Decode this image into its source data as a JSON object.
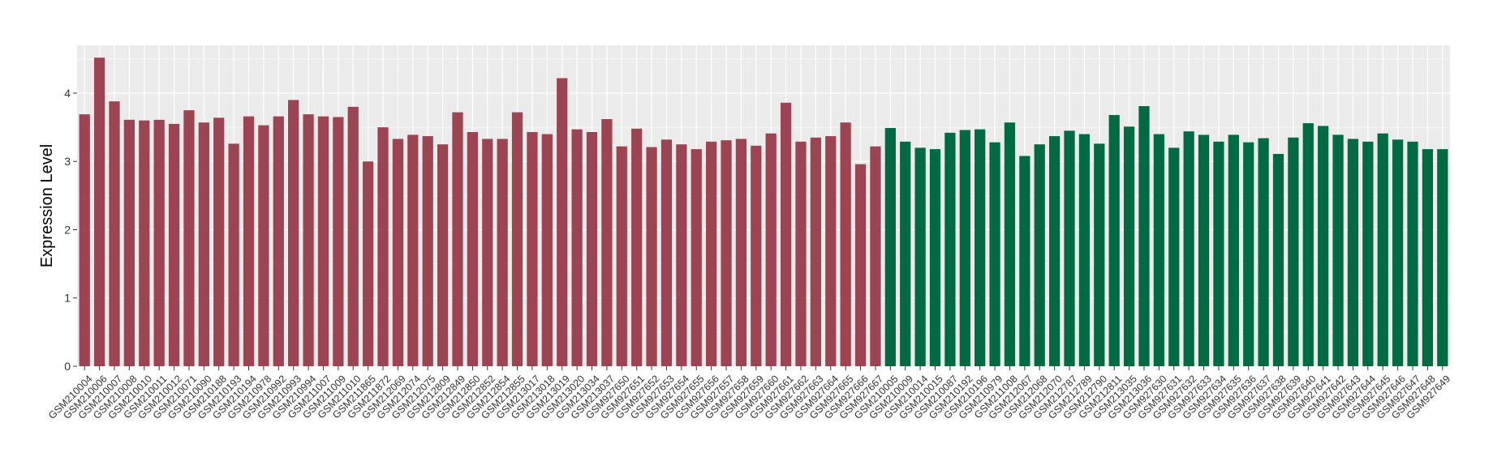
{
  "chart_data": {
    "type": "bar",
    "ylabel": "Expression Level",
    "xlabel": "",
    "ylim": [
      0,
      4.7
    ],
    "yticks": [
      0,
      1,
      2,
      3,
      4
    ],
    "grid": true,
    "colors": {
      "group1": "#9c4452",
      "group2": "#006b43",
      "panel": "#ebebeb",
      "grid": "#ffffff"
    },
    "categories": [
      "GSM210004",
      "GSM210006",
      "GSM210007",
      "GSM210008",
      "GSM210010",
      "GSM210011",
      "GSM210012",
      "GSM210071",
      "GSM210090",
      "GSM210188",
      "GSM210193",
      "GSM210194",
      "GSM210978",
      "GSM210992",
      "GSM210993",
      "GSM210994",
      "GSM211007",
      "GSM211009",
      "GSM211010",
      "GSM211865",
      "GSM211872",
      "GSM212069",
      "GSM212074",
      "GSM212075",
      "GSM212809",
      "GSM212849",
      "GSM212850",
      "GSM212852",
      "GSM212854",
      "GSM212855",
      "GSM213017",
      "GSM213018",
      "GSM213019",
      "GSM213020",
      "GSM213034",
      "GSM213037",
      "GSM927650",
      "GSM927651",
      "GSM927652",
      "GSM927653",
      "GSM927654",
      "GSM927655",
      "GSM927656",
      "GSM927657",
      "GSM927658",
      "GSM927659",
      "GSM927660",
      "GSM927661",
      "GSM927662",
      "GSM927663",
      "GSM927664",
      "GSM927665",
      "GSM927666",
      "GSM927667",
      "GSM210005",
      "GSM210009",
      "GSM210014",
      "GSM210015",
      "GSM210087",
      "GSM210192",
      "GSM210196",
      "GSM210979",
      "GSM211008",
      "GSM212067",
      "GSM212068",
      "GSM212070",
      "GSM212787",
      "GSM212789",
      "GSM212790",
      "GSM212811",
      "GSM213035",
      "GSM213036",
      "GSM927630",
      "GSM927631",
      "GSM927632",
      "GSM927633",
      "GSM927634",
      "GSM927635",
      "GSM927636",
      "GSM927637",
      "GSM927638",
      "GSM927639",
      "GSM927640",
      "GSM927641",
      "GSM927642",
      "GSM927643",
      "GSM927644",
      "GSM927645",
      "GSM927646",
      "GSM927647",
      "GSM927648",
      "GSM927649"
    ],
    "values": [
      3.69,
      4.52,
      3.88,
      3.61,
      3.6,
      3.61,
      3.55,
      3.75,
      3.57,
      3.64,
      3.26,
      3.66,
      3.53,
      3.66,
      3.9,
      3.69,
      3.66,
      3.65,
      3.8,
      3.0,
      3.5,
      3.33,
      3.39,
      3.37,
      3.25,
      3.72,
      3.43,
      3.33,
      3.33,
      3.72,
      3.43,
      3.4,
      4.22,
      3.47,
      3.43,
      3.62,
      3.22,
      3.48,
      3.21,
      3.32,
      3.25,
      3.18,
      3.29,
      3.31,
      3.33,
      3.23,
      3.41,
      3.86,
      3.29,
      3.35,
      3.37,
      3.57,
      2.96,
      3.22,
      3.49,
      3.29,
      3.2,
      3.18,
      3.42,
      3.46,
      3.47,
      3.28,
      3.57,
      3.08,
      3.25,
      3.37,
      3.45,
      3.4,
      3.26,
      3.68,
      3.51,
      3.81,
      3.4,
      3.2,
      3.44,
      3.39,
      3.29,
      3.39,
      3.28,
      3.34,
      3.11,
      3.35,
      3.56,
      3.52,
      3.39,
      3.33,
      3.29,
      3.41,
      3.32,
      3.29,
      3.18,
      3.18
    ],
    "group_counts": [
      54,
      38
    ]
  }
}
